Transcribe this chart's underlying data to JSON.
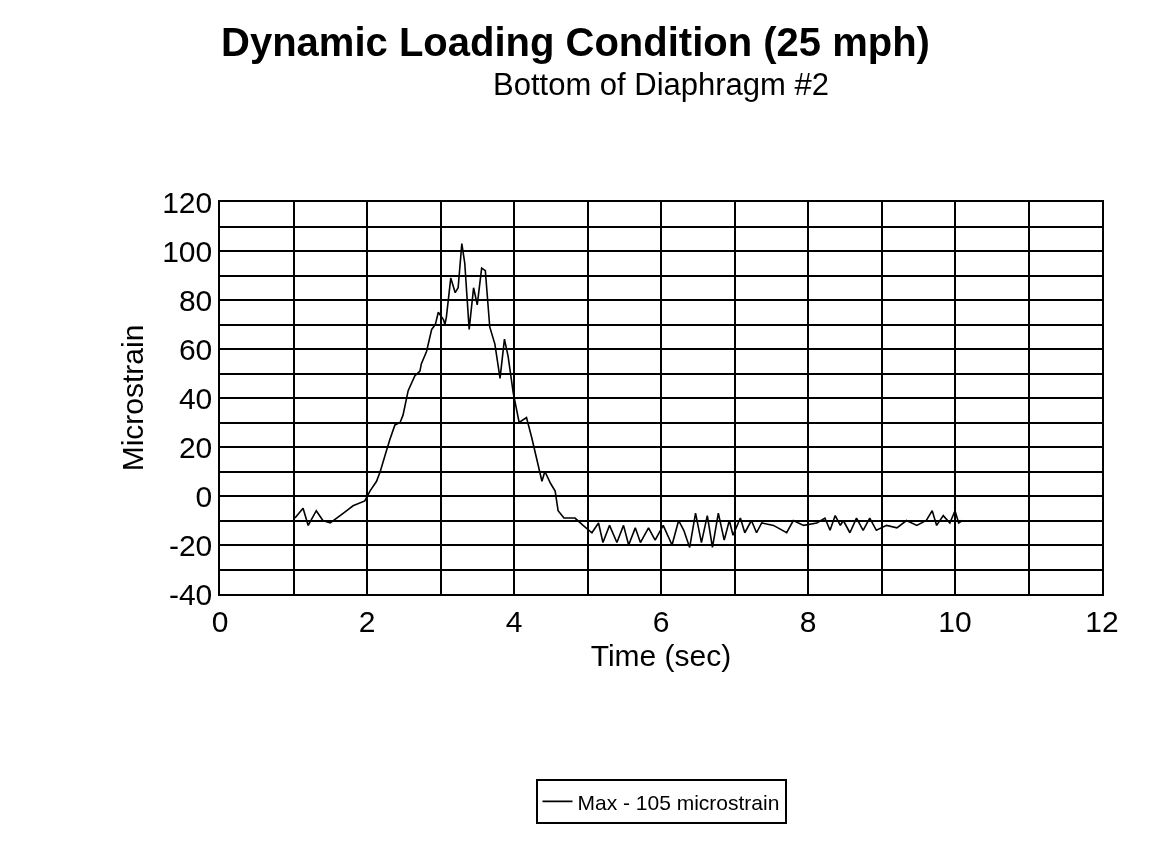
{
  "chart_data": {
    "type": "line",
    "title": "Dynamic Loading Condition (25 mph)",
    "subtitle": "Bottom of Diaphragm #2",
    "xlabel": "Time (sec)",
    "ylabel": "Microstrain",
    "series": [
      {
        "name": "Max - 105 microstrain",
        "color": "#000000",
        "x": [
          1.02,
          1.13,
          1.2,
          1.31,
          1.4,
          1.5,
          1.68,
          1.81,
          1.97,
          2.04,
          2.13,
          2.18,
          2.25,
          2.31,
          2.38,
          2.45,
          2.49,
          2.56,
          2.65,
          2.72,
          2.74,
          2.81,
          2.88,
          2.93,
          2.97,
          3.04,
          3.06,
          3.08,
          3.14,
          3.2,
          3.24,
          3.29,
          3.33,
          3.39,
          3.45,
          3.5,
          3.56,
          3.61,
          3.67,
          3.74,
          3.81,
          3.87,
          3.92,
          3.99,
          4.07,
          4.17,
          4.24,
          4.38,
          4.42,
          4.5,
          4.56,
          4.6,
          4.68,
          4.83,
          4.94,
          5.06,
          5.15,
          5.21,
          5.3,
          5.4,
          5.49,
          5.56,
          5.65,
          5.72,
          5.83,
          5.92,
          6.03,
          6.15,
          6.24,
          6.31,
          6.39,
          6.47,
          6.55,
          6.63,
          6.7,
          6.78,
          6.86,
          6.93,
          6.98,
          7.08,
          7.14,
          7.23,
          7.3,
          7.37,
          7.53,
          7.71,
          7.8,
          7.94,
          8.12,
          8.23,
          8.3,
          8.37,
          8.44,
          8.48,
          8.57,
          8.66,
          8.75,
          8.84,
          8.93,
          9.07,
          9.21,
          9.34,
          9.48,
          9.61,
          9.69,
          9.75,
          9.84,
          9.93,
          10.0,
          10.05,
          10.1
        ],
        "values": [
          -9,
          -5,
          -12,
          -6,
          -10,
          -11,
          -7,
          -4,
          -2,
          2,
          6,
          10,
          17,
          23,
          29,
          30,
          33,
          43,
          49,
          51,
          54,
          59,
          68,
          70,
          75,
          72,
          70,
          73,
          89,
          83,
          85,
          103,
          95,
          68,
          85,
          78,
          93,
          92,
          69,
          62,
          48,
          64,
          57,
          42,
          30,
          32,
          24,
          6,
          10,
          5,
          2,
          -6,
          -9,
          -9,
          -12,
          -15,
          -11,
          -19,
          -12,
          -19,
          -12,
          -20,
          -13,
          -19,
          -13,
          -18,
          -12,
          -20,
          -10,
          -14,
          -21,
          -7,
          -19,
          -8,
          -21,
          -7,
          -18,
          -10,
          -16,
          -9,
          -15,
          -10,
          -15,
          -11,
          -12,
          -15,
          -10,
          -12,
          -11,
          -9,
          -14,
          -8,
          -12,
          -10,
          -15,
          -9,
          -14,
          -9,
          -14,
          -12,
          -13,
          -10,
          -12,
          -10,
          -6,
          -12,
          -8,
          -11,
          -6,
          -11,
          -10
        ]
      }
    ],
    "xlim": [
      0,
      12
    ],
    "ylim": [
      -40,
      120
    ],
    "xticks": [
      0,
      {
        "value": 1,
        "label": null
      },
      2,
      {
        "value": 3,
        "label": null
      },
      4,
      {
        "value": 5,
        "label": null
      },
      6,
      {
        "value": 7,
        "label": null
      },
      8,
      {
        "value": 9,
        "label": null
      },
      10,
      {
        "value": 11,
        "label": null
      },
      12
    ],
    "yticks": [
      -40,
      {
        "value": -30,
        "label": null
      },
      -20,
      {
        "value": -10,
        "label": null
      },
      0,
      {
        "value": 10,
        "label": null
      },
      20,
      {
        "value": 30,
        "label": null
      },
      40,
      {
        "value": 50,
        "label": null
      },
      60,
      {
        "value": 70,
        "label": null
      },
      80,
      {
        "value": 90,
        "label": null
      },
      100,
      {
        "value": 110,
        "label": null
      },
      120
    ],
    "grid": true,
    "legend": "bottom",
    "marker": "none",
    "line_style": "solid"
  }
}
